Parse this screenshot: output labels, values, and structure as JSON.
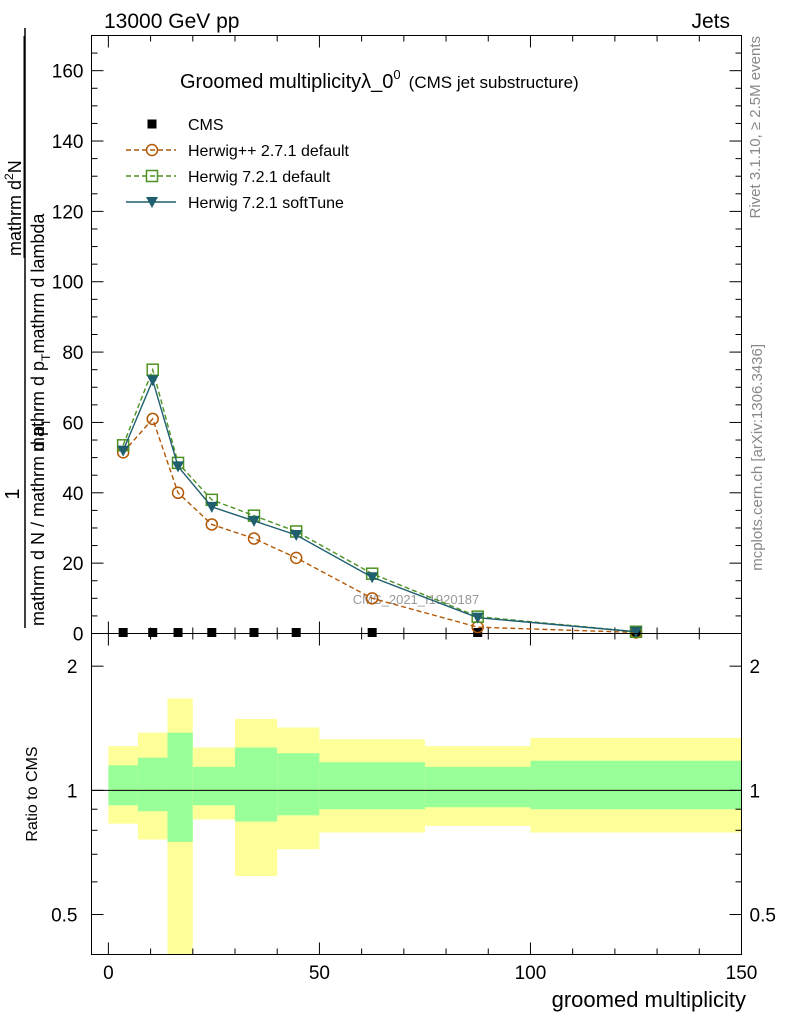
{
  "header": {
    "left": "13000 GeV pp",
    "right": "Jets"
  },
  "side": {
    "rivet": "Rivet 3.1.10, ≥ 2.5M events",
    "mcplots": "mcplots.cern.ch [arXiv:1306.3436]"
  },
  "chart_data": {
    "type": "line",
    "title": "Groomed multiplicityλ_0",
    "title_sup": "0",
    "title_suffix": "(CMS jet substructure)",
    "watermark": "CMS_2021_I1920187",
    "ylabel_parts": {
      "one": "1",
      "den": "mathrm d N / mathrm d p",
      "den_sub": "T",
      "num_top": "mathrm d",
      "num_sup": "2",
      "num_mid": "N",
      "num_den": "mathrm d p",
      "num_den_sub": "T",
      "num_tail": "mathrm d lambda"
    },
    "xlabel": "groomed multiplicity",
    "ratio_ylabel": "Ratio to CMS",
    "xlim": [
      -4,
      150
    ],
    "ylim": [
      0,
      170
    ],
    "ratio_ylim": [
      0.4,
      2.4
    ],
    "x_ticks": [
      0,
      50,
      100,
      150
    ],
    "y_ticks": [
      0,
      20,
      40,
      60,
      80,
      100,
      120,
      140,
      160
    ],
    "ratio_ticks": [
      0.5,
      1,
      2
    ],
    "legend_position": "top-left",
    "series": [
      {
        "name": "CMS",
        "color": "#000000",
        "marker": "filled-square",
        "x": [
          3.5,
          10.5,
          16.5,
          24.5,
          34.5,
          44.5,
          62.5,
          87.5,
          125
        ],
        "y": [
          0,
          0,
          0,
          0,
          0,
          0,
          0,
          0,
          0
        ]
      },
      {
        "name": "Herwig++ 2.7.1 default",
        "color": "#b35806",
        "marker": "open-circle",
        "dashed": true,
        "x": [
          3.5,
          10.5,
          16.5,
          24.5,
          34.5,
          44.5,
          62.5,
          87.5,
          125
        ],
        "y": [
          51.5,
          61,
          40,
          31,
          27,
          21.5,
          10,
          1.8,
          0.3
        ]
      },
      {
        "name": "Herwig 7.2.1 default",
        "color": "#4d9221",
        "marker": "open-square",
        "dashed": true,
        "x": [
          3.5,
          10.5,
          16.5,
          24.5,
          34.5,
          44.5,
          62.5,
          87.5,
          125
        ],
        "y": [
          53.5,
          75,
          48.5,
          38,
          33.5,
          29,
          17,
          4.8,
          0.5
        ]
      },
      {
        "name": "Herwig 7.2.1 softTune",
        "color": "#1f5f6e",
        "marker": "filled-triangle-down",
        "dashed": false,
        "x": [
          3.5,
          10.5,
          16.5,
          24.5,
          34.5,
          44.5,
          62.5,
          87.5,
          125
        ],
        "y": [
          52,
          72,
          47.5,
          36,
          32,
          28,
          16,
          4.5,
          0.5
        ]
      }
    ],
    "ratio_bands": {
      "edges": [
        0,
        7,
        14,
        20,
        30,
        40,
        50,
        75,
        100,
        150
      ],
      "yellow_low": [
        0.83,
        0.76,
        0.36,
        0.85,
        0.62,
        0.72,
        0.79,
        0.82,
        0.79
      ],
      "yellow_high": [
        1.28,
        1.38,
        1.67,
        1.27,
        1.49,
        1.42,
        1.33,
        1.28,
        1.34
      ],
      "green_low": [
        0.92,
        0.89,
        0.75,
        0.92,
        0.84,
        0.87,
        0.9,
        0.91,
        0.9
      ],
      "green_high": [
        1.15,
        1.2,
        1.38,
        1.14,
        1.27,
        1.23,
        1.17,
        1.14,
        1.18
      ]
    }
  }
}
